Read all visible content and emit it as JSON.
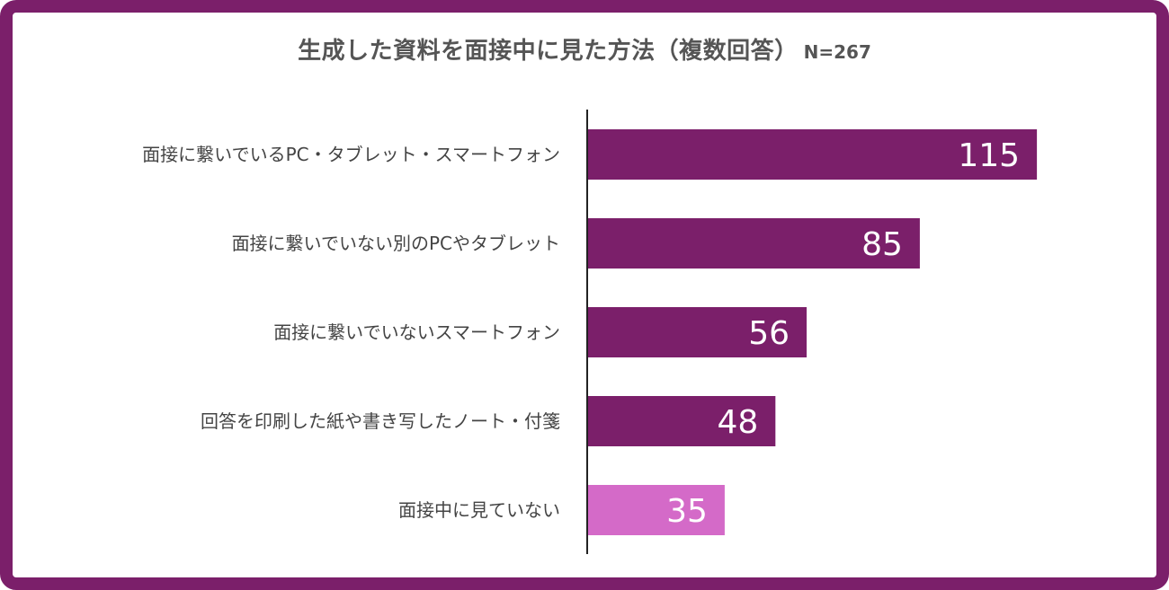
{
  "chart_data": {
    "type": "bar",
    "orientation": "horizontal",
    "title": "生成した資料を面接中に見た方法（複数回答）",
    "subtitle": "N=267",
    "categories": [
      "面接に繋いでいるPC・タブレット・スマートフォン",
      "面接に繋いでいない別のPCやタブレット",
      "面接に繋いでいないスマートフォン",
      "回答を印刷した紙や書き写したノート・付箋",
      "面接中に見ていない"
    ],
    "values": [
      115,
      85,
      56,
      48,
      35
    ],
    "bar_colors": [
      "#7b1f6a",
      "#7b1f6a",
      "#7b1f6a",
      "#7b1f6a",
      "#d46ac8"
    ],
    "data_labels": true,
    "xlim": [
      0,
      150
    ],
    "grid": false,
    "legend": "none"
  },
  "colors": {
    "frame": "#7b1f6a",
    "text": "#555555"
  }
}
